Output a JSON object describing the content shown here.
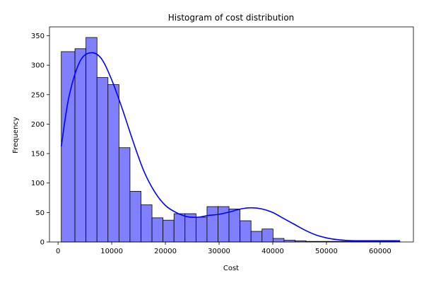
{
  "chart_data": {
    "type": "bar",
    "title": "Histogram of cost distribution",
    "xlabel": "Cost",
    "ylabel": "Frequency",
    "xlim": [
      -1600,
      66200
    ],
    "ylim": [
      0,
      365
    ],
    "bin_edges": [
      600,
      3150,
      5200,
      7250,
      9300,
      11350,
      13400,
      15450,
      17500,
      19550,
      21600,
      23650,
      25700,
      27750,
      29800,
      31850,
      33900,
      35950,
      38000,
      40050,
      42100,
      44150,
      46200,
      48250,
      50300,
      52350,
      54400,
      56450,
      58500,
      60550,
      62600,
      63700
    ],
    "values": [
      323,
      328,
      347,
      279,
      267,
      160,
      86,
      63,
      41,
      37,
      48,
      48,
      42,
      60,
      60,
      56,
      36,
      18,
      22,
      6,
      3,
      2,
      1,
      1,
      1,
      1,
      1,
      1,
      1,
      1,
      1
    ],
    "kde": {
      "x": [
        600,
        2000,
        4000,
        6000,
        8000,
        10000,
        12000,
        14000,
        16000,
        18000,
        20000,
        22000,
        24000,
        26000,
        28000,
        30000,
        32000,
        34000,
        36000,
        38000,
        40000,
        42000,
        44000,
        46000,
        48000,
        50000,
        52000,
        54000,
        56000,
        58000,
        60000,
        62000,
        63700
      ],
      "y": [
        162,
        245,
        305,
        321,
        312,
        275,
        225,
        170,
        120,
        85,
        62,
        50,
        43,
        42,
        45,
        47,
        51,
        56,
        58,
        56,
        50,
        40,
        30,
        20,
        12,
        7,
        4,
        2.5,
        2,
        2,
        2,
        2,
        2
      ]
    },
    "x_ticks": [
      0,
      10000,
      20000,
      30000,
      40000,
      50000,
      60000
    ],
    "x_tick_labels": [
      "0",
      "10000",
      "20000",
      "30000",
      "40000",
      "50000",
      "60000"
    ],
    "y_ticks": [
      0,
      50,
      100,
      150,
      200,
      250,
      300,
      350
    ],
    "y_tick_labels": [
      "0",
      "50",
      "100",
      "150",
      "200",
      "250",
      "300",
      "350"
    ],
    "grid": false,
    "legend": "none",
    "colors": {
      "bar_fill": "#8080ff",
      "bar_edge": "#000000",
      "kde_line": "#0000ff"
    }
  }
}
